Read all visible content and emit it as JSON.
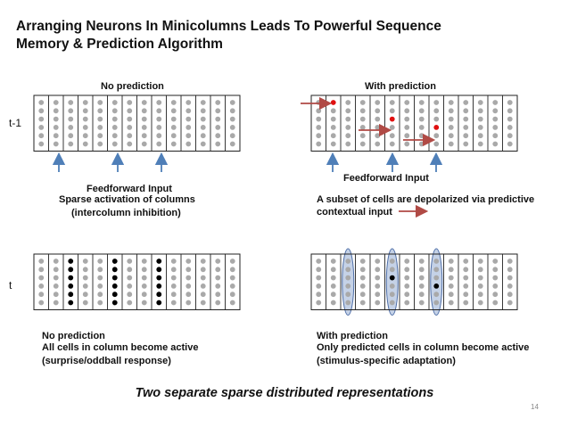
{
  "slide": {
    "title_line1": "Arranging Neurons In Minicolumns Leads To Powerful Sequence",
    "title_line2": "Memory & Prediction Algorithm",
    "page_number": "14",
    "tagline": "Two separate sparse distributed representations"
  },
  "rows": {
    "t_minus_1": "t-1",
    "t": "t"
  },
  "panels": {
    "top_left": {
      "header": "No prediction",
      "caption_1": "Feedforward Input",
      "caption_2": "Sparse activation of columns",
      "caption_3": "(intercolumn inhibition)"
    },
    "top_right": {
      "header": "With prediction",
      "caption_1": "Feedforward Input",
      "caption_2": "A subset of cells are depolarized via predictive",
      "caption_3": "contextual input"
    },
    "bottom_left": {
      "caption_1": "No prediction",
      "caption_2": "All cells in column become active",
      "caption_3": "(surprise/oddball response)"
    },
    "bottom_right": {
      "caption_1": "With prediction",
      "caption_2": "Only predicted cells in column become active",
      "caption_3": "(stimulus-specific adaptation)"
    }
  },
  "grid": {
    "columns": 14,
    "cells_per_column": 6,
    "active_columns": [
      2,
      5,
      8
    ],
    "predicted_cells": [
      [
        1,
        0
      ],
      [
        5,
        2
      ],
      [
        8,
        3
      ]
    ]
  },
  "colors": {
    "cell_inactive": "#a9a9a9",
    "cell_active": "#000000",
    "cell_predicted": "#e01010",
    "arrow_feedforward": "#4f7fb8",
    "arrow_context": "#b04a45",
    "column_highlight": "#7f9cc9"
  }
}
